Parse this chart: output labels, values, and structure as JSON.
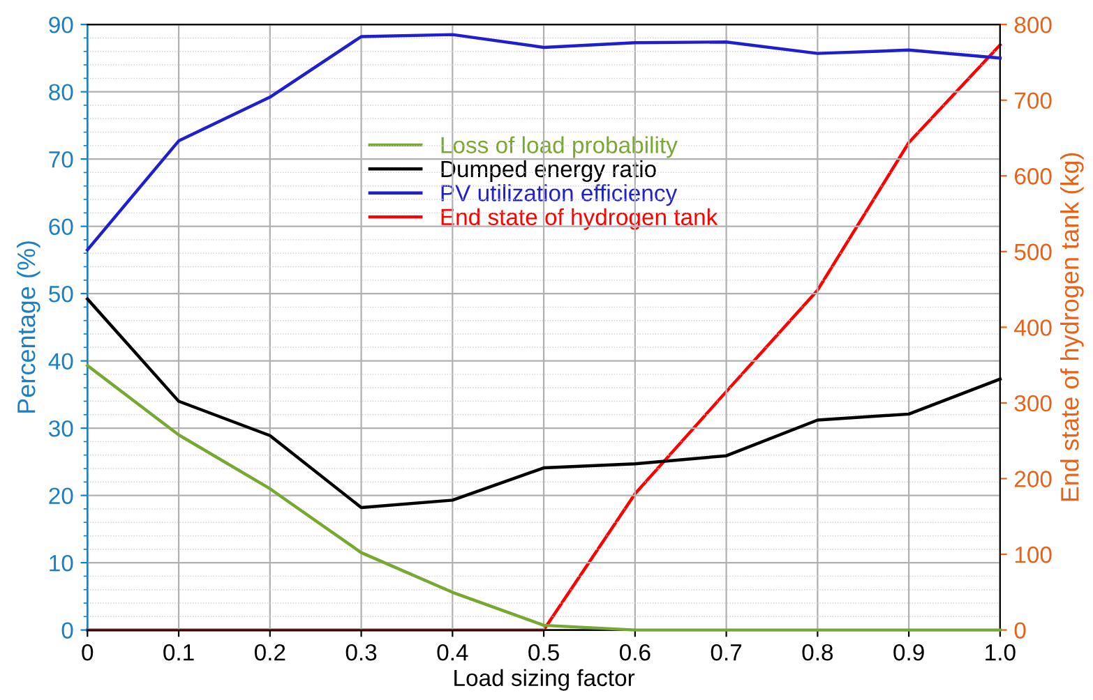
{
  "chart_data": {
    "type": "line",
    "xlabel": "Load sizing factor",
    "ylabel": "Percentage (%)",
    "y2label": "End state of hydrogen tank (kg)",
    "x": [
      0,
      0.1,
      0.2,
      0.3,
      0.4,
      0.5,
      0.6,
      0.7,
      0.8,
      0.9,
      1.0
    ],
    "series": [
      {
        "name": "Loss of load probability",
        "color": "#77a832",
        "values": [
          39.3,
          29.0,
          21.0,
          11.5,
          5.6,
          0.7,
          0,
          0,
          0,
          0,
          0
        ]
      },
      {
        "name": "Dumped energy ratio",
        "color": "#000000",
        "values": [
          49.2,
          34.0,
          28.9,
          18.2,
          19.3,
          24.1,
          24.7,
          25.9,
          31.2,
          32.1,
          37.3
        ]
      },
      {
        "name": "PV utilization efficiency",
        "color": "#1f1fd0",
        "values": [
          56.5,
          72.7,
          79.2,
          88.2,
          88.5,
          86.6,
          87.3,
          87.4,
          85.7,
          86.2,
          85.0
        ]
      },
      {
        "name": "End state of hydrogen tank",
        "color": "#ff0000",
        "axis": "y2",
        "values": [
          0,
          0,
          0,
          0,
          0,
          0,
          180,
          315,
          449,
          644,
          773
        ]
      }
    ],
    "xlim": [
      0,
      1.0
    ],
    "xticks": [
      {
        "value": 0,
        "label": "0"
      },
      0.1,
      0.2,
      0.3,
      0.4,
      0.5,
      0.6,
      0.7,
      0.8,
      0.9,
      {
        "value": 1.0,
        "label": "1.0"
      }
    ],
    "ylim": [
      0,
      90
    ],
    "yticks": [
      0,
      10,
      20,
      30,
      40,
      50,
      60,
      70,
      80,
      90
    ],
    "y2lim": [
      0,
      800
    ],
    "y2ticks": [
      0,
      100,
      200,
      300,
      400,
      500,
      600,
      700,
      800
    ],
    "grid": true,
    "legend": "top",
    "marker": "none",
    "line_style": "solid"
  }
}
